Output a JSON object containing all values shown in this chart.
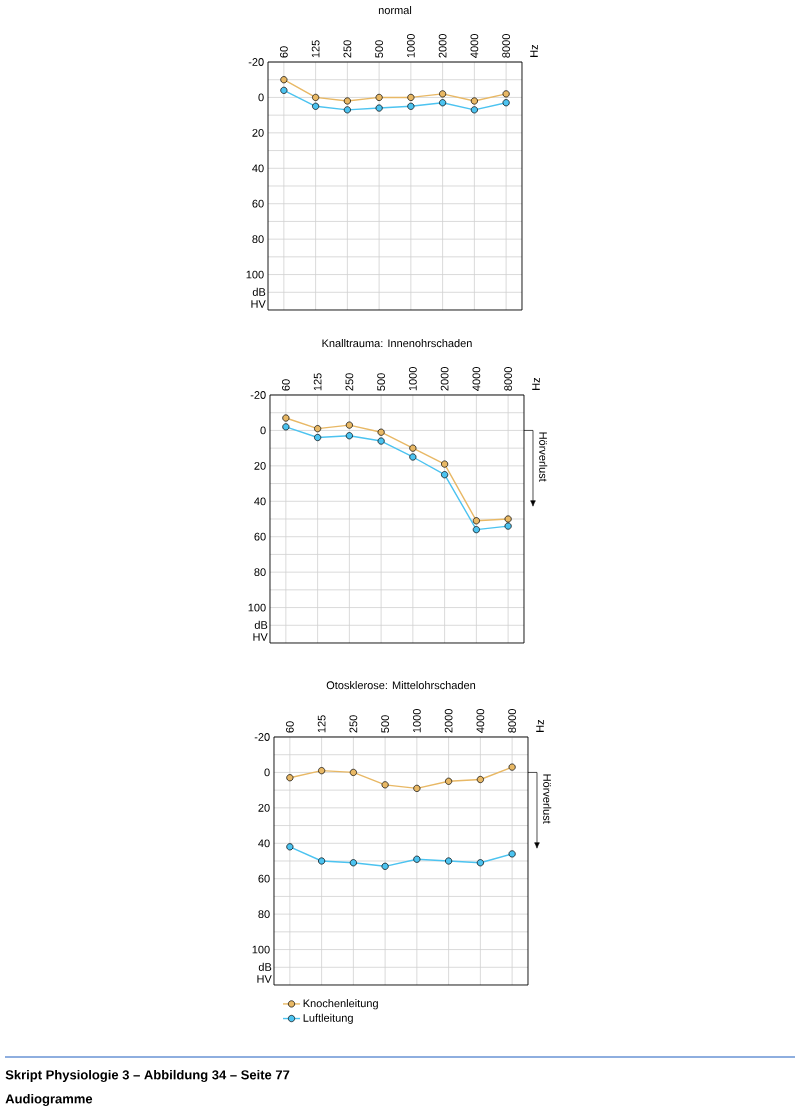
{
  "chart_data": [
    {
      "type": "line",
      "title": "normal",
      "ylabel": "dB HV",
      "categories": [
        "60",
        "125",
        "250",
        "500",
        "1000",
        "2000",
        "4000",
        "8000"
      ],
      "series": [
        {
          "color": "#e8b865",
          "values": [
            -10,
            0,
            2,
            0,
            0,
            -2,
            2,
            -2
          ]
        },
        {
          "color": "#4cc3f0",
          "values": [
            -4,
            5,
            7,
            6,
            5,
            3,
            7,
            3
          ]
        }
      ],
      "ylim": [
        120,
        -20
      ],
      "yticks": [
        -20,
        {
          "value": -10,
          "label": null
        },
        0,
        {
          "value": 10,
          "label": null
        },
        20,
        {
          "value": 30,
          "label": null
        },
        40,
        {
          "value": 50,
          "label": null
        },
        60,
        {
          "value": 70,
          "label": null
        },
        80,
        {
          "value": 90,
          "label": null
        },
        100,
        {
          "value": 110,
          "label": null
        }
      ],
      "grid": true,
      "marker": "circle",
      "annotations": [
        "Hz"
      ]
    },
    {
      "type": "line",
      "title": "Knalltrauma: Innenohrschaden",
      "ylabel": "dB HV",
      "categories": [
        "60",
        "125",
        "250",
        "500",
        "1000",
        "2000",
        "4000",
        "8000"
      ],
      "series": [
        {
          "color": "#e8b865",
          "values": [
            -7,
            -1,
            -3,
            1,
            10,
            19,
            51,
            50
          ]
        },
        {
          "color": "#4cc3f0",
          "values": [
            -2,
            4,
            3,
            6,
            15,
            25,
            56,
            54
          ]
        }
      ],
      "ylim": [
        120,
        -20
      ],
      "yticks": [
        -20,
        {
          "value": -10,
          "label": null
        },
        0,
        {
          "value": 10,
          "label": null
        },
        20,
        {
          "value": 30,
          "label": null
        },
        40,
        {
          "value": 50,
          "label": null
        },
        60,
        {
          "value": 70,
          "label": null
        },
        80,
        {
          "value": 90,
          "label": null
        },
        100,
        {
          "value": 110,
          "label": null
        }
      ],
      "grid": true,
      "marker": "circle",
      "annotations": [
        "Hz",
        "Hörverlust"
      ]
    },
    {
      "type": "line",
      "title": "Otosklerose: Mittelohrschaden",
      "ylabel": "dB HV",
      "categories": [
        "60",
        "125",
        "250",
        "500",
        "1000",
        "2000",
        "4000",
        "8000"
      ],
      "series": [
        {
          "name": "Knochenleitung",
          "color": "#e8b865",
          "values": [
            3,
            -1,
            0,
            7,
            9,
            5,
            4,
            -3
          ]
        },
        {
          "name": "Luftleitung",
          "color": "#4cc3f0",
          "values": [
            42,
            50,
            51,
            53,
            49,
            50,
            51,
            46
          ]
        }
      ],
      "ylim": [
        120,
        -20
      ],
      "yticks": [
        -20,
        {
          "value": -10,
          "label": null
        },
        0,
        {
          "value": 10,
          "label": null
        },
        20,
        {
          "value": 30,
          "label": null
        },
        40,
        {
          "value": 50,
          "label": null
        },
        60,
        {
          "value": 70,
          "label": null
        },
        80,
        {
          "value": 90,
          "label": null
        },
        100,
        {
          "value": 110,
          "label": null
        }
      ],
      "grid": true,
      "marker": "circle",
      "legend": "bottom",
      "annotations": [
        "Hz",
        "Hörverlust",
        "Skript Physiologie 3 – Abbildung 34 – Seite 77",
        "Audiogramme"
      ]
    }
  ]
}
